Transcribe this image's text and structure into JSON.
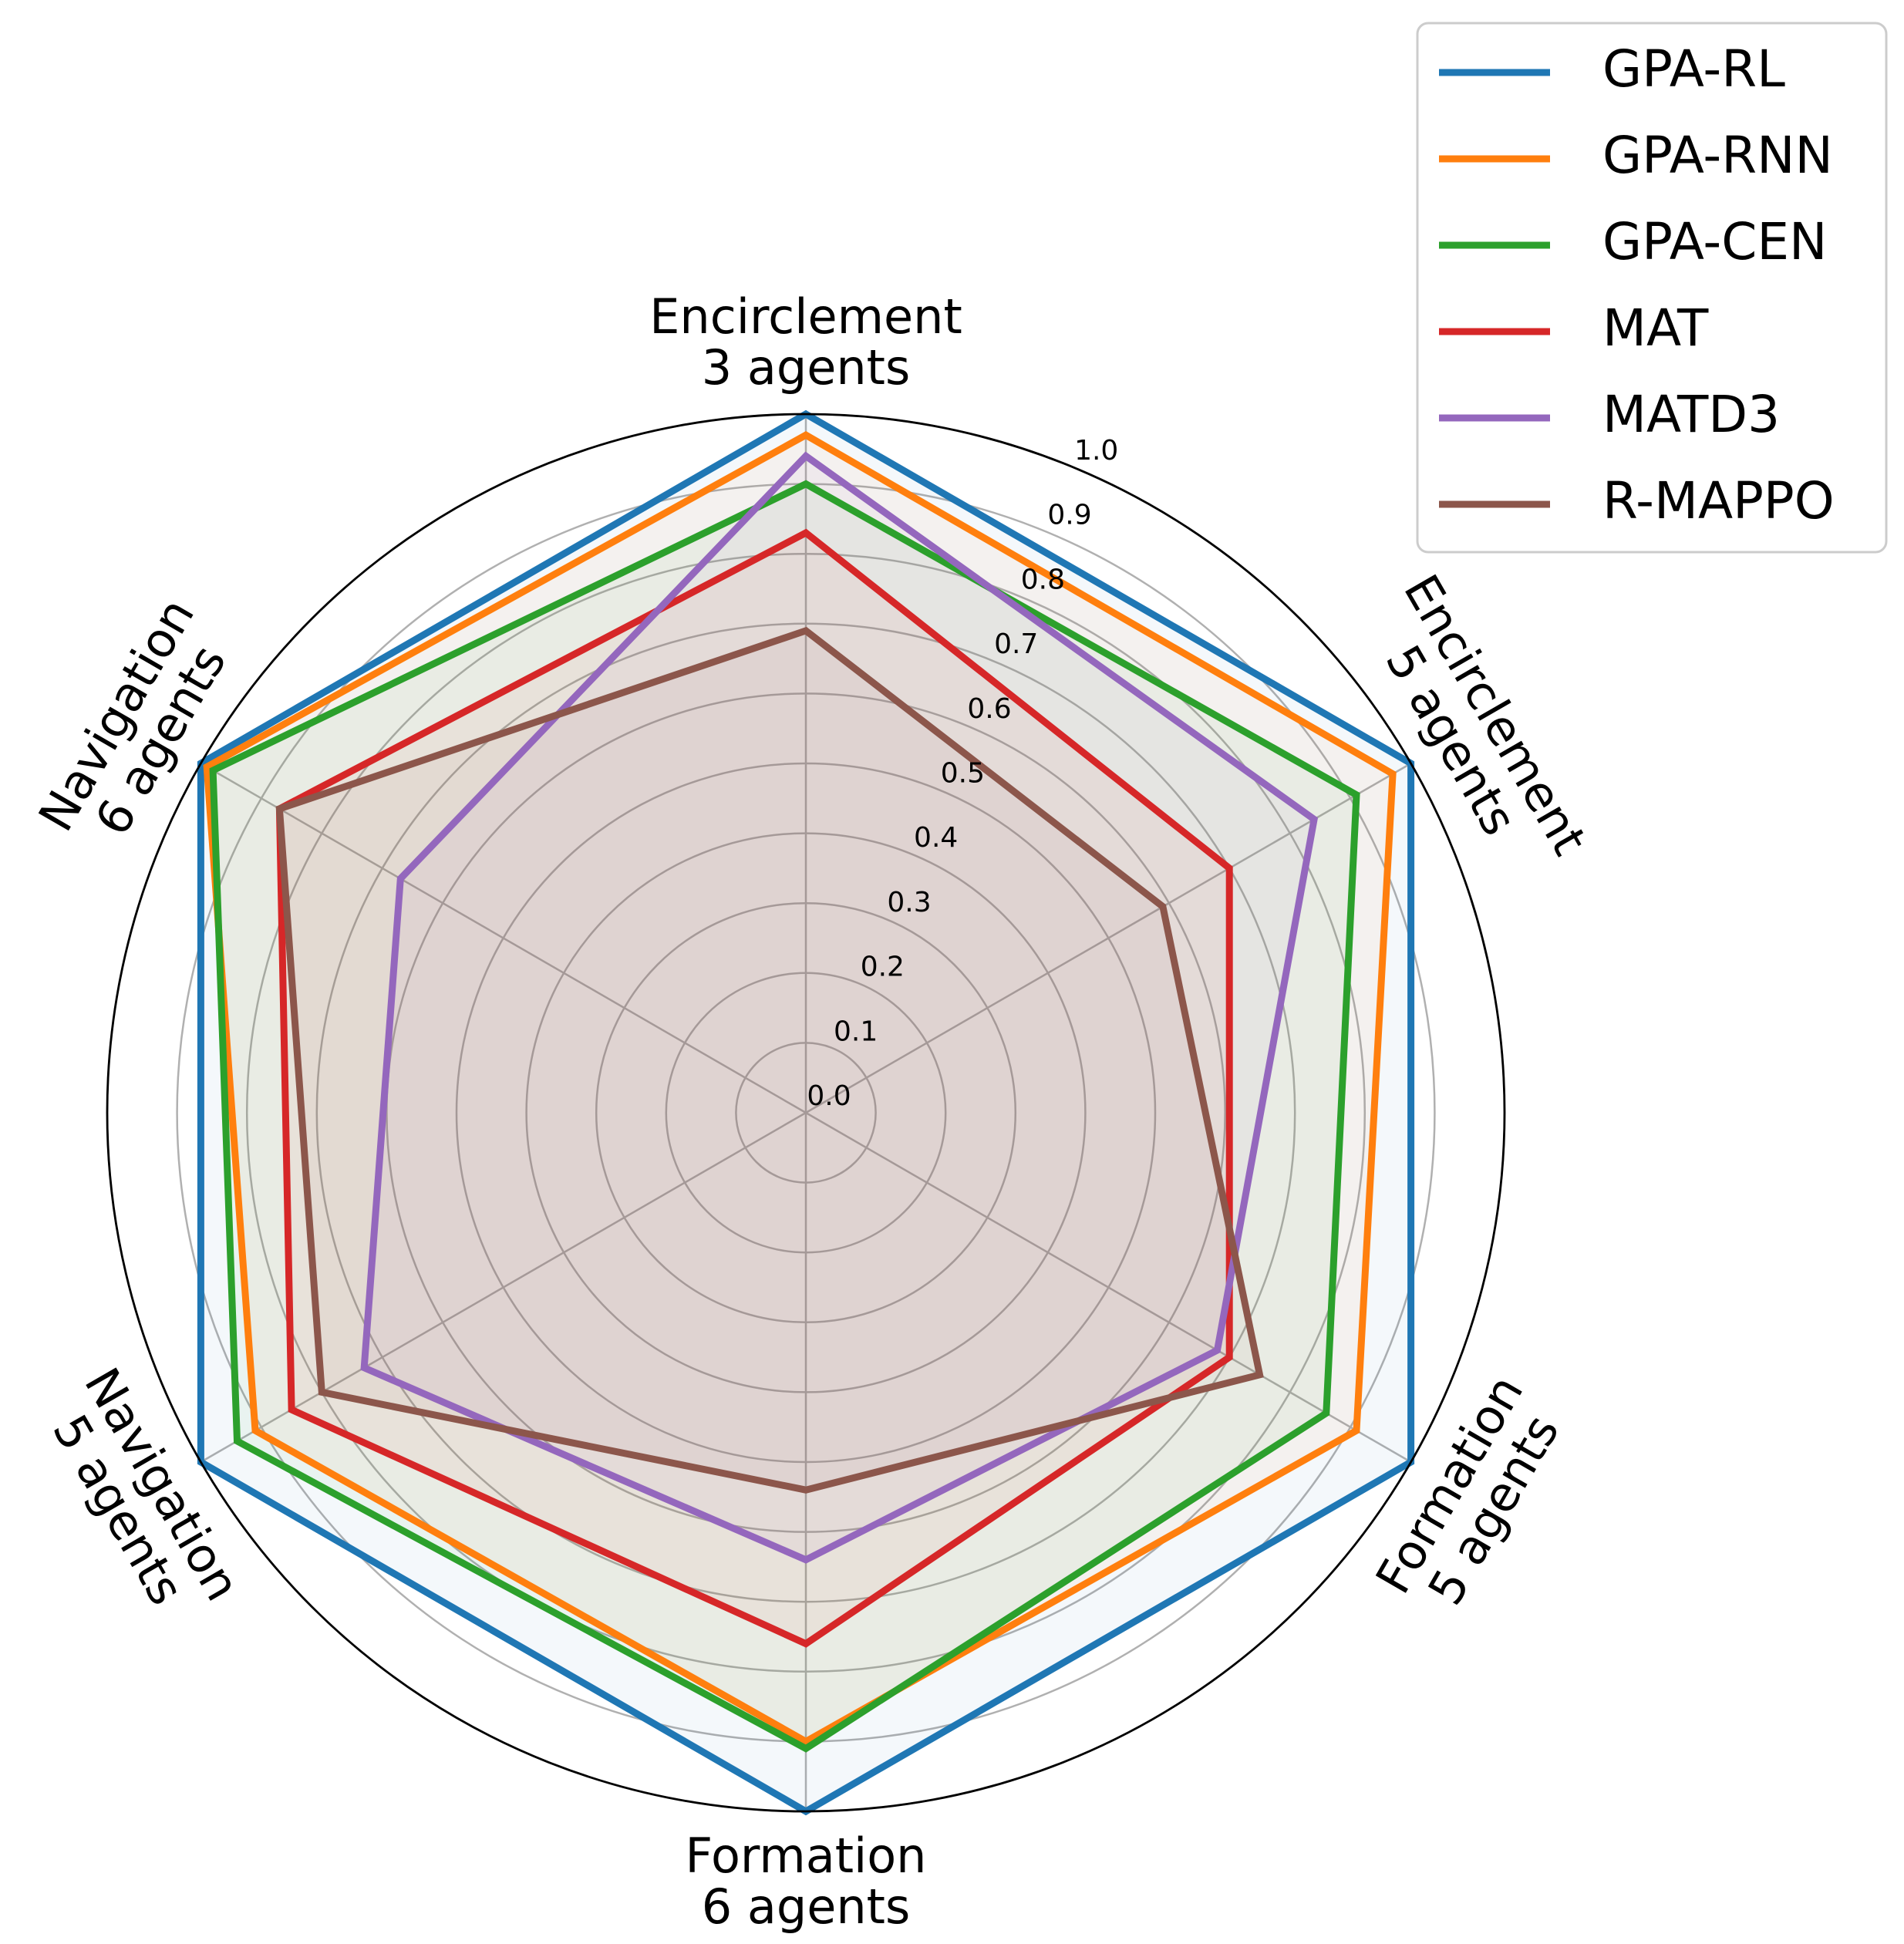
{
  "chart_data": {
    "type": "radar",
    "axes": [
      [
        "Encirclement",
        "3 agents"
      ],
      [
        "Encirclement",
        "5 agents"
      ],
      [
        "Formation",
        "5 agents"
      ],
      [
        "Formation",
        "6 agents"
      ],
      [
        "Navigation",
        "5 agents"
      ],
      [
        "Navigation",
        "6 agents"
      ]
    ],
    "rlim": [
      0,
      1.0
    ],
    "rticks": [
      "0.0",
      "0.1",
      "0.2",
      "0.3",
      "0.4",
      "0.5",
      "0.6",
      "0.7",
      "0.8",
      "0.9",
      "1.0"
    ],
    "grid": true,
    "legend_position": "top-right",
    "series": [
      {
        "name": "GPA-RL",
        "color": "#1f77b4",
        "values": [
          1.0,
          1.0,
          1.0,
          1.0,
          1.0,
          1.0
        ]
      },
      {
        "name": "GPA-RNN",
        "color": "#ff7f0e",
        "values": [
          0.97,
          0.97,
          0.91,
          0.9,
          0.91,
          0.99
        ]
      },
      {
        "name": "GPA-CEN",
        "color": "#2ca02c",
        "values": [
          0.9,
          0.91,
          0.86,
          0.91,
          0.94,
          0.98
        ]
      },
      {
        "name": "MAT",
        "color": "#d62728",
        "values": [
          0.83,
          0.7,
          0.7,
          0.76,
          0.85,
          0.87
        ]
      },
      {
        "name": "MATD3",
        "color": "#9467bd",
        "values": [
          0.94,
          0.84,
          0.68,
          0.64,
          0.73,
          0.67
        ]
      },
      {
        "name": "R-MAPPO",
        "color": "#8c564b",
        "values": [
          0.69,
          0.59,
          0.75,
          0.54,
          0.8,
          0.87
        ]
      }
    ]
  }
}
